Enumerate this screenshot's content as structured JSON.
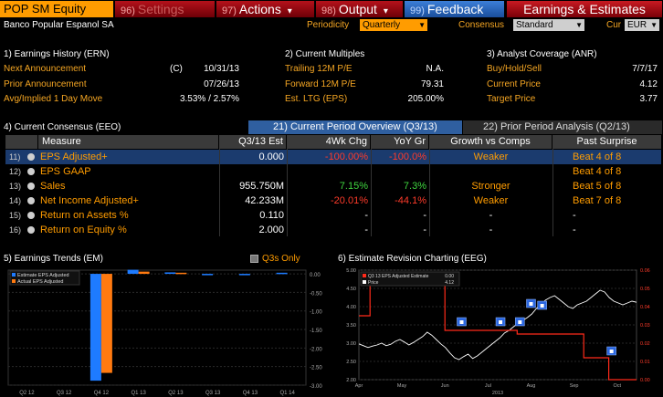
{
  "header": {
    "ticker": "POP SM Equity",
    "buttons": [
      {
        "num": "96)",
        "label": "Settings"
      },
      {
        "num": "97)",
        "label": "Actions",
        "caret": "▾"
      },
      {
        "num": "98)",
        "label": "Output",
        "caret": "▾"
      },
      {
        "num": "99)",
        "label": "Feedback"
      }
    ],
    "function_title": "Earnings & Estimates"
  },
  "subheader": {
    "company": "Banco Popular Espanol SA",
    "periodicity_label": "Periodicity",
    "periodicity_value": "Quarterly",
    "consensus_label": "Consensus",
    "consensus_value": "Standard",
    "cur_label": "Cur",
    "cur_value": "EUR"
  },
  "ern": {
    "title": "1) Earnings History (ERN)",
    "rows": [
      {
        "label": "Next Announcement",
        "flag": "(C)",
        "value": "10/31/13"
      },
      {
        "label": "Prior Announcement",
        "flag": "",
        "value": "07/26/13"
      },
      {
        "label": "Avg/Implied 1 Day Move",
        "flag": "",
        "value": "3.53% / 2.57%"
      }
    ]
  },
  "multiples": {
    "title": "2) Current Multiples",
    "rows": [
      {
        "label": "Trailing 12M P/E",
        "value": "N.A."
      },
      {
        "label": "Forward 12M P/E",
        "value": "79.31"
      },
      {
        "label": "Est. LTG (EPS)",
        "value": "205.00%"
      }
    ]
  },
  "anr": {
    "title": "3) Analyst Coverage (ANR)",
    "rows": [
      {
        "label": "Buy/Hold/Sell",
        "value": "7/7/17"
      },
      {
        "label": "Current Price",
        "value": "4.12"
      },
      {
        "label": "Target Price",
        "value": "3.77"
      }
    ]
  },
  "consensus": {
    "title": "4) Current Consensus (EEO)",
    "tab_current": "21) Current Period Overview (Q3/13)",
    "tab_prior": "22) Prior Period Analysis (Q2/13)",
    "columns": [
      "Measure",
      "Q3/13 Est",
      "4Wk Chg",
      "YoY Gr",
      "Growth vs Comps",
      "Past Surprise"
    ],
    "rows": [
      {
        "num": "11)",
        "measure": "EPS Adjusted+",
        "est": "0.000",
        "chg": "-100.00%",
        "yoy": "-100.0%",
        "growth": "Weaker",
        "surprise": "Beat 4 of 8",
        "selected": true
      },
      {
        "num": "12)",
        "measure": "EPS GAAP",
        "est": "",
        "chg": "",
        "yoy": "",
        "growth": "",
        "surprise": "Beat 4 of 8",
        "selected": false
      },
      {
        "num": "13)",
        "measure": "Sales",
        "est": "955.750M",
        "chg": "7.15%",
        "yoy": "7.3%",
        "growth": "Stronger",
        "surprise": "Beat 5 of 8",
        "selected": false
      },
      {
        "num": "14)",
        "measure": "Net Income Adjusted+",
        "est": "42.233M",
        "chg": "-20.01%",
        "yoy": "-44.1%",
        "growth": "Weaker",
        "surprise": "Beat 7 of 8",
        "selected": false
      },
      {
        "num": "15)",
        "measure": "Return on Assets %",
        "est": "0.110",
        "chg": "-",
        "yoy": "-",
        "growth": "-",
        "surprise": "-",
        "selected": false
      },
      {
        "num": "16)",
        "measure": "Return on Equity %",
        "est": "2.000",
        "chg": "-",
        "yoy": "-",
        "growth": "-",
        "surprise": "-",
        "selected": false
      }
    ]
  },
  "trends": {
    "title": "5) Earnings Trends (EM)",
    "q3s_label": "Q3s Only",
    "legend": [
      "Estimate EPS Adjusted",
      "Actual EPS Adjusted"
    ],
    "colors": {
      "estimate": "#1e7bff",
      "actual": "#ff7a10"
    },
    "x_labels": [
      "Q2 12",
      "Q3 12",
      "Q4 12",
      "Q1 13",
      "Q2 13",
      "Q3 13",
      "Q4 13",
      "Q1 14"
    ],
    "y_labels": [
      "0.00",
      "-0.50",
      "-1.00",
      "-1.50",
      "-2.00",
      "-2.50",
      "-3.00"
    ],
    "ylim": [
      -3.0,
      0.1
    ],
    "estimate": [
      -0.03,
      0.02,
      -2.88,
      0.11,
      0.04,
      0.0,
      -0.03,
      0.03
    ],
    "actual": [
      0.04,
      0.03,
      -2.67,
      0.06,
      0.03,
      null,
      null,
      null
    ]
  },
  "revision": {
    "title": "6) Estimate Revision Charting (EEG)",
    "legend": [
      {
        "label": "Q3 13 EPS Adjusted Estimate",
        "value": "0.00"
      },
      {
        "label": "Price",
        "value": "4.12"
      }
    ],
    "colors": {
      "estimate": "#ff2a1a",
      "price": "#ffffff",
      "marker": "#2a66e0"
    },
    "x_labels": [
      "Apr",
      "May",
      "Jun",
      "Jul",
      "Aug",
      "Sep",
      "Oct"
    ],
    "year_label": "2013",
    "y_left": [
      "5.00",
      "4.50",
      "4.00",
      "3.50",
      "3.00",
      "2.50",
      "2.00"
    ],
    "y_right": [
      "0.06",
      "0.05",
      "0.04",
      "0.03",
      "0.02",
      "0.01",
      "0.00"
    ],
    "price_series": [
      2.98,
      2.93,
      2.88,
      2.92,
      2.95,
      3.0,
      2.93,
      2.97,
      3.05,
      3.1,
      3.03,
      2.95,
      3.02,
      3.1,
      3.18,
      3.3,
      3.22,
      3.1,
      2.98,
      2.88,
      2.73,
      2.6,
      2.55,
      2.63,
      2.7,
      2.58,
      2.65,
      2.75,
      2.85,
      2.95,
      3.05,
      3.15,
      3.28,
      3.35,
      3.45,
      3.55,
      3.62,
      3.7,
      3.8,
      3.95,
      4.05,
      4.18,
      4.25,
      4.3,
      4.2,
      4.1,
      4.0,
      3.95,
      4.05,
      4.1,
      4.15,
      4.25,
      4.35,
      4.45,
      4.4,
      4.25,
      4.15,
      4.1,
      4.05,
      4.1,
      4.15,
      4.12
    ],
    "estimate_steps": [
      {
        "from": 0.0,
        "to": 0.04,
        "value": 0.035
      },
      {
        "from": 0.04,
        "to": 0.15,
        "value": 0.054
      },
      {
        "from": 0.15,
        "to": 0.31,
        "value": 0.052
      },
      {
        "from": 0.31,
        "to": 0.57,
        "value": 0.027
      },
      {
        "from": 0.57,
        "to": 0.81,
        "value": 0.025
      },
      {
        "from": 0.81,
        "to": 0.9,
        "value": 0.012
      },
      {
        "from": 0.9,
        "to": 1.0,
        "value": 0.0
      }
    ],
    "markers": [
      {
        "t": 0.37,
        "v": 0.031
      },
      {
        "t": 0.51,
        "v": 0.031
      },
      {
        "t": 0.58,
        "v": 0.031
      },
      {
        "t": 0.62,
        "v": 0.041
      },
      {
        "t": 0.66,
        "v": 0.04
      },
      {
        "t": 0.91,
        "v": 0.015
      }
    ]
  }
}
